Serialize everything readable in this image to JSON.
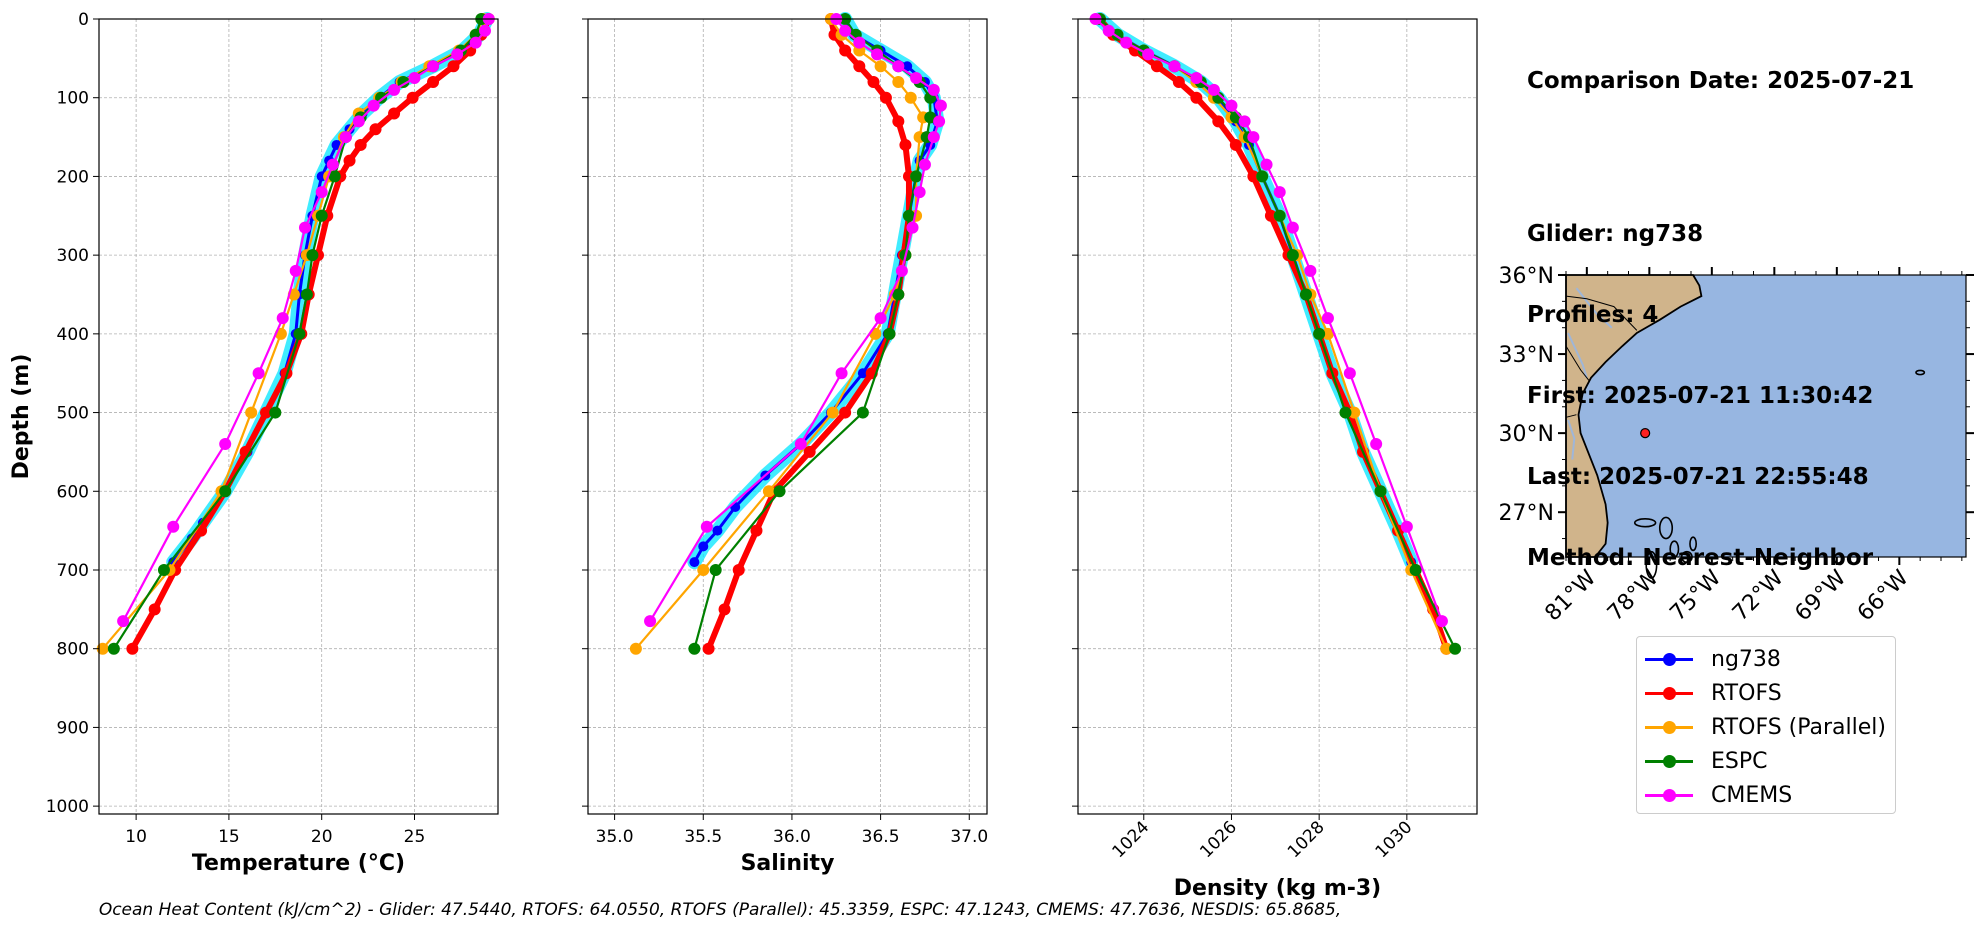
{
  "info": {
    "date_line": "Comparison Date: 2025-07-21",
    "glider_line": "Glider: ng738",
    "profiles_line": "Profiles: 4",
    "first_line": "First: 2025-07-21 11:30:42",
    "last_line": "Last: 2025-07-21 22:55:48",
    "method_line": "Method: Nearest-Neighbor"
  },
  "footer_text": "Ocean Heat Content (kJ/cm^2) - Glider: 47.5440,  RTOFS: 64.0550,  RTOFS (Parallel): 45.3359,  ESPC: 47.1243,  CMEMS: 47.7636,  NESDIS: 65.8685,",
  "colors": {
    "ng738": "#0000ff",
    "rtofs": "#ff0000",
    "rtofs_parallel": "#ffa500",
    "espc": "#008000",
    "cmems": "#ff00ff",
    "glider_halo": "#00e5ff",
    "ocean": "#97b6e1",
    "land": "#d0b48b",
    "marker": "#ff2020"
  },
  "legend": [
    {
      "key": "ng738",
      "label": "ng738"
    },
    {
      "key": "rtofs",
      "label": "RTOFS"
    },
    {
      "key": "rtofs_parallel",
      "label": "RTOFS (Parallel)"
    },
    {
      "key": "espc",
      "label": "ESPC"
    },
    {
      "key": "cmems",
      "label": "CMEMS"
    }
  ],
  "chart_data": [
    {
      "type": "line",
      "id": "temperature",
      "xlabel": "Temperature (°C)",
      "ylabel": "Depth (m)",
      "xlim": [
        8,
        29.5
      ],
      "ylim": [
        1010,
        0
      ],
      "xticks": [
        10,
        15,
        20,
        25
      ],
      "yticks": [
        0,
        100,
        200,
        300,
        400,
        500,
        600,
        700,
        800,
        900,
        1000
      ],
      "grid": true,
      "series": [
        {
          "name": "ng738",
          "depth": [
            0,
            20,
            40,
            60,
            80,
            100,
            120,
            140,
            160,
            180,
            200,
            250,
            300,
            350,
            400,
            450,
            500,
            550,
            600,
            640,
            660,
            690
          ],
          "values": [
            28.9,
            28.5,
            27.6,
            26.0,
            24.2,
            23.1,
            22.2,
            21.5,
            20.8,
            20.4,
            20.0,
            19.5,
            19.1,
            18.8,
            18.6,
            18.0,
            17.0,
            16.0,
            14.8,
            13.6,
            13.0,
            12.0
          ]
        },
        {
          "name": "RTOFS",
          "depth": [
            0,
            20,
            40,
            60,
            80,
            100,
            120,
            140,
            160,
            180,
            200,
            250,
            300,
            350,
            400,
            450,
            500,
            550,
            600,
            650,
            700,
            750,
            800
          ],
          "values": [
            29.0,
            28.6,
            28.0,
            27.1,
            26.0,
            24.9,
            23.9,
            22.9,
            22.1,
            21.5,
            21.0,
            20.3,
            19.8,
            19.3,
            18.9,
            18.1,
            17.0,
            15.9,
            14.8,
            13.5,
            12.1,
            11.0,
            9.8
          ]
        },
        {
          "name": "RTOFS (Parallel)",
          "depth": [
            0,
            20,
            40,
            60,
            80,
            100,
            120,
            150,
            200,
            250,
            300,
            350,
            400,
            500,
            600,
            700,
            800
          ],
          "values": [
            28.7,
            28.3,
            27.4,
            25.8,
            24.3,
            23.1,
            22.0,
            21.2,
            20.4,
            19.8,
            19.2,
            18.5,
            17.8,
            16.2,
            14.6,
            11.8,
            8.2
          ]
        },
        {
          "name": "ESPC",
          "depth": [
            0,
            20,
            40,
            60,
            80,
            100,
            125,
            150,
            200,
            250,
            300,
            350,
            400,
            500,
            600,
            700,
            800
          ],
          "values": [
            28.6,
            28.3,
            27.5,
            26.0,
            24.4,
            23.2,
            22.1,
            21.3,
            20.7,
            20.0,
            19.5,
            19.2,
            18.8,
            17.5,
            14.8,
            11.5,
            8.8
          ]
        },
        {
          "name": "CMEMS",
          "depth": [
            0,
            15,
            30,
            45,
            60,
            75,
            90,
            110,
            130,
            150,
            185,
            220,
            265,
            320,
            380,
            450,
            540,
            645,
            765
          ],
          "values": [
            29.0,
            28.8,
            28.3,
            27.3,
            26.0,
            25.0,
            23.9,
            22.8,
            22.0,
            21.3,
            20.6,
            20.0,
            19.1,
            18.6,
            17.9,
            16.6,
            14.8,
            12.0,
            9.3
          ]
        }
      ]
    },
    {
      "type": "line",
      "id": "salinity",
      "xlabel": "Salinity",
      "xlim": [
        34.85,
        37.1
      ],
      "ylim": [
        1010,
        0
      ],
      "xticks": [
        35.0,
        35.5,
        36.0,
        36.5,
        37.0
      ],
      "xticklabels": [
        "35.0",
        "35.5",
        "36.0",
        "36.5",
        "37.0"
      ],
      "yticks": [
        0,
        100,
        200,
        300,
        400,
        500,
        600,
        700,
        800,
        900,
        1000
      ],
      "grid": true,
      "series": [
        {
          "name": "ng738",
          "depth": [
            0,
            20,
            40,
            60,
            80,
            100,
            130,
            160,
            180,
            200,
            250,
            300,
            350,
            400,
            450,
            500,
            540,
            580,
            620,
            650,
            670,
            690
          ],
          "values": [
            36.3,
            36.35,
            36.5,
            36.65,
            36.75,
            36.8,
            36.82,
            36.78,
            36.72,
            36.7,
            36.66,
            36.62,
            36.58,
            36.54,
            36.4,
            36.22,
            36.05,
            35.85,
            35.68,
            35.58,
            35.5,
            35.45
          ]
        },
        {
          "name": "RTOFS",
          "depth": [
            0,
            20,
            40,
            60,
            80,
            100,
            130,
            160,
            200,
            250,
            300,
            350,
            400,
            450,
            500,
            550,
            600,
            650,
            700,
            750,
            800
          ],
          "values": [
            36.22,
            36.24,
            36.3,
            36.38,
            36.46,
            36.53,
            36.6,
            36.64,
            36.66,
            36.66,
            36.63,
            36.6,
            36.55,
            36.45,
            36.3,
            36.1,
            35.9,
            35.8,
            35.7,
            35.62,
            35.53
          ]
        },
        {
          "name": "RTOFS (Parallel)",
          "depth": [
            0,
            20,
            40,
            60,
            80,
            100,
            125,
            150,
            200,
            250,
            300,
            350,
            400,
            500,
            600,
            700,
            800
          ],
          "values": [
            36.22,
            36.28,
            36.38,
            36.5,
            36.6,
            36.67,
            36.74,
            36.72,
            36.7,
            36.7,
            36.64,
            36.58,
            36.47,
            36.23,
            35.87,
            35.5,
            35.12
          ]
        },
        {
          "name": "ESPC",
          "depth": [
            0,
            20,
            40,
            60,
            80,
            100,
            125,
            150,
            200,
            250,
            300,
            350,
            400,
            500,
            600,
            700,
            800
          ],
          "values": [
            36.3,
            36.36,
            36.48,
            36.6,
            36.72,
            36.78,
            36.78,
            36.76,
            36.7,
            36.66,
            36.64,
            36.6,
            36.55,
            36.4,
            35.93,
            35.57,
            35.45
          ]
        },
        {
          "name": "CMEMS",
          "depth": [
            0,
            15,
            30,
            45,
            60,
            75,
            90,
            110,
            130,
            150,
            185,
            220,
            265,
            320,
            380,
            450,
            540,
            645,
            765
          ],
          "values": [
            36.25,
            36.3,
            36.38,
            36.48,
            36.6,
            36.7,
            36.8,
            36.84,
            36.83,
            36.8,
            36.75,
            36.72,
            36.68,
            36.62,
            36.5,
            36.28,
            36.05,
            35.52,
            35.2
          ]
        }
      ]
    },
    {
      "type": "line",
      "id": "density",
      "xlabel": "Density (kg m-3)",
      "xlim": [
        1022.5,
        1031.6
      ],
      "ylim": [
        1010,
        0
      ],
      "xticks": [
        1024,
        1026,
        1028,
        1030
      ],
      "yticks": [
        0,
        100,
        200,
        300,
        400,
        500,
        600,
        700,
        800,
        900,
        1000
      ],
      "grid": true,
      "series": [
        {
          "name": "ng738",
          "depth": [
            0,
            20,
            40,
            60,
            80,
            100,
            130,
            160,
            200,
            250,
            300,
            350,
            400,
            450,
            500,
            550,
            600,
            650,
            690
          ],
          "values": [
            1023.0,
            1023.4,
            1024.0,
            1024.7,
            1025.3,
            1025.7,
            1026.1,
            1026.4,
            1026.7,
            1027.1,
            1027.4,
            1027.7,
            1028.0,
            1028.3,
            1028.7,
            1029.0,
            1029.4,
            1029.8,
            1030.1
          ]
        },
        {
          "name": "RTOFS",
          "depth": [
            0,
            20,
            40,
            60,
            80,
            100,
            130,
            160,
            200,
            250,
            300,
            350,
            400,
            450,
            500,
            550,
            600,
            650,
            700,
            750,
            800
          ],
          "values": [
            1023.0,
            1023.3,
            1023.8,
            1024.3,
            1024.8,
            1025.2,
            1025.7,
            1026.1,
            1026.5,
            1026.9,
            1027.3,
            1027.7,
            1028.0,
            1028.3,
            1028.7,
            1029.0,
            1029.4,
            1029.8,
            1030.2,
            1030.6,
            1030.9
          ]
        },
        {
          "name": "RTOFS (Parallel)",
          "depth": [
            0,
            20,
            40,
            60,
            80,
            100,
            125,
            150,
            200,
            250,
            300,
            350,
            400,
            500,
            600,
            700,
            800
          ],
          "values": [
            1023.0,
            1023.4,
            1024.0,
            1024.7,
            1025.2,
            1025.6,
            1026.0,
            1026.3,
            1026.7,
            1027.1,
            1027.5,
            1027.8,
            1028.2,
            1028.8,
            1029.4,
            1030.1,
            1030.9
          ]
        },
        {
          "name": "ESPC",
          "depth": [
            0,
            20,
            40,
            60,
            80,
            100,
            125,
            150,
            200,
            250,
            300,
            350,
            400,
            500,
            600,
            700,
            800
          ],
          "values": [
            1023.0,
            1023.4,
            1024.0,
            1024.7,
            1025.3,
            1025.7,
            1026.1,
            1026.4,
            1026.7,
            1027.1,
            1027.4,
            1027.7,
            1028.0,
            1028.6,
            1029.4,
            1030.2,
            1031.1
          ]
        },
        {
          "name": "CMEMS",
          "depth": [
            0,
            15,
            30,
            45,
            60,
            75,
            90,
            110,
            130,
            150,
            185,
            220,
            265,
            320,
            380,
            450,
            540,
            645,
            765
          ],
          "values": [
            1022.9,
            1023.2,
            1023.6,
            1024.1,
            1024.7,
            1025.2,
            1025.6,
            1026.0,
            1026.3,
            1026.5,
            1026.8,
            1027.1,
            1027.4,
            1027.8,
            1028.2,
            1028.7,
            1029.3,
            1030.0,
            1030.8
          ]
        }
      ]
    },
    {
      "type": "map",
      "id": "location-map",
      "lon_range": [
        -82.0,
        -62.8
      ],
      "lat_range": [
        25.3,
        36.0
      ],
      "xticks": [
        -81,
        -78,
        -75,
        -72,
        -69,
        -66
      ],
      "xticklabels": [
        "81°W",
        "78°W",
        "75°W",
        "72°W",
        "69°W",
        "66°W"
      ],
      "yticks": [
        27,
        30,
        33,
        36
      ],
      "yticklabels": [
        "27°N",
        "30°N",
        "33°N",
        "36°N"
      ],
      "glider_position": {
        "lon": -78.2,
        "lat": 30.0
      }
    }
  ]
}
